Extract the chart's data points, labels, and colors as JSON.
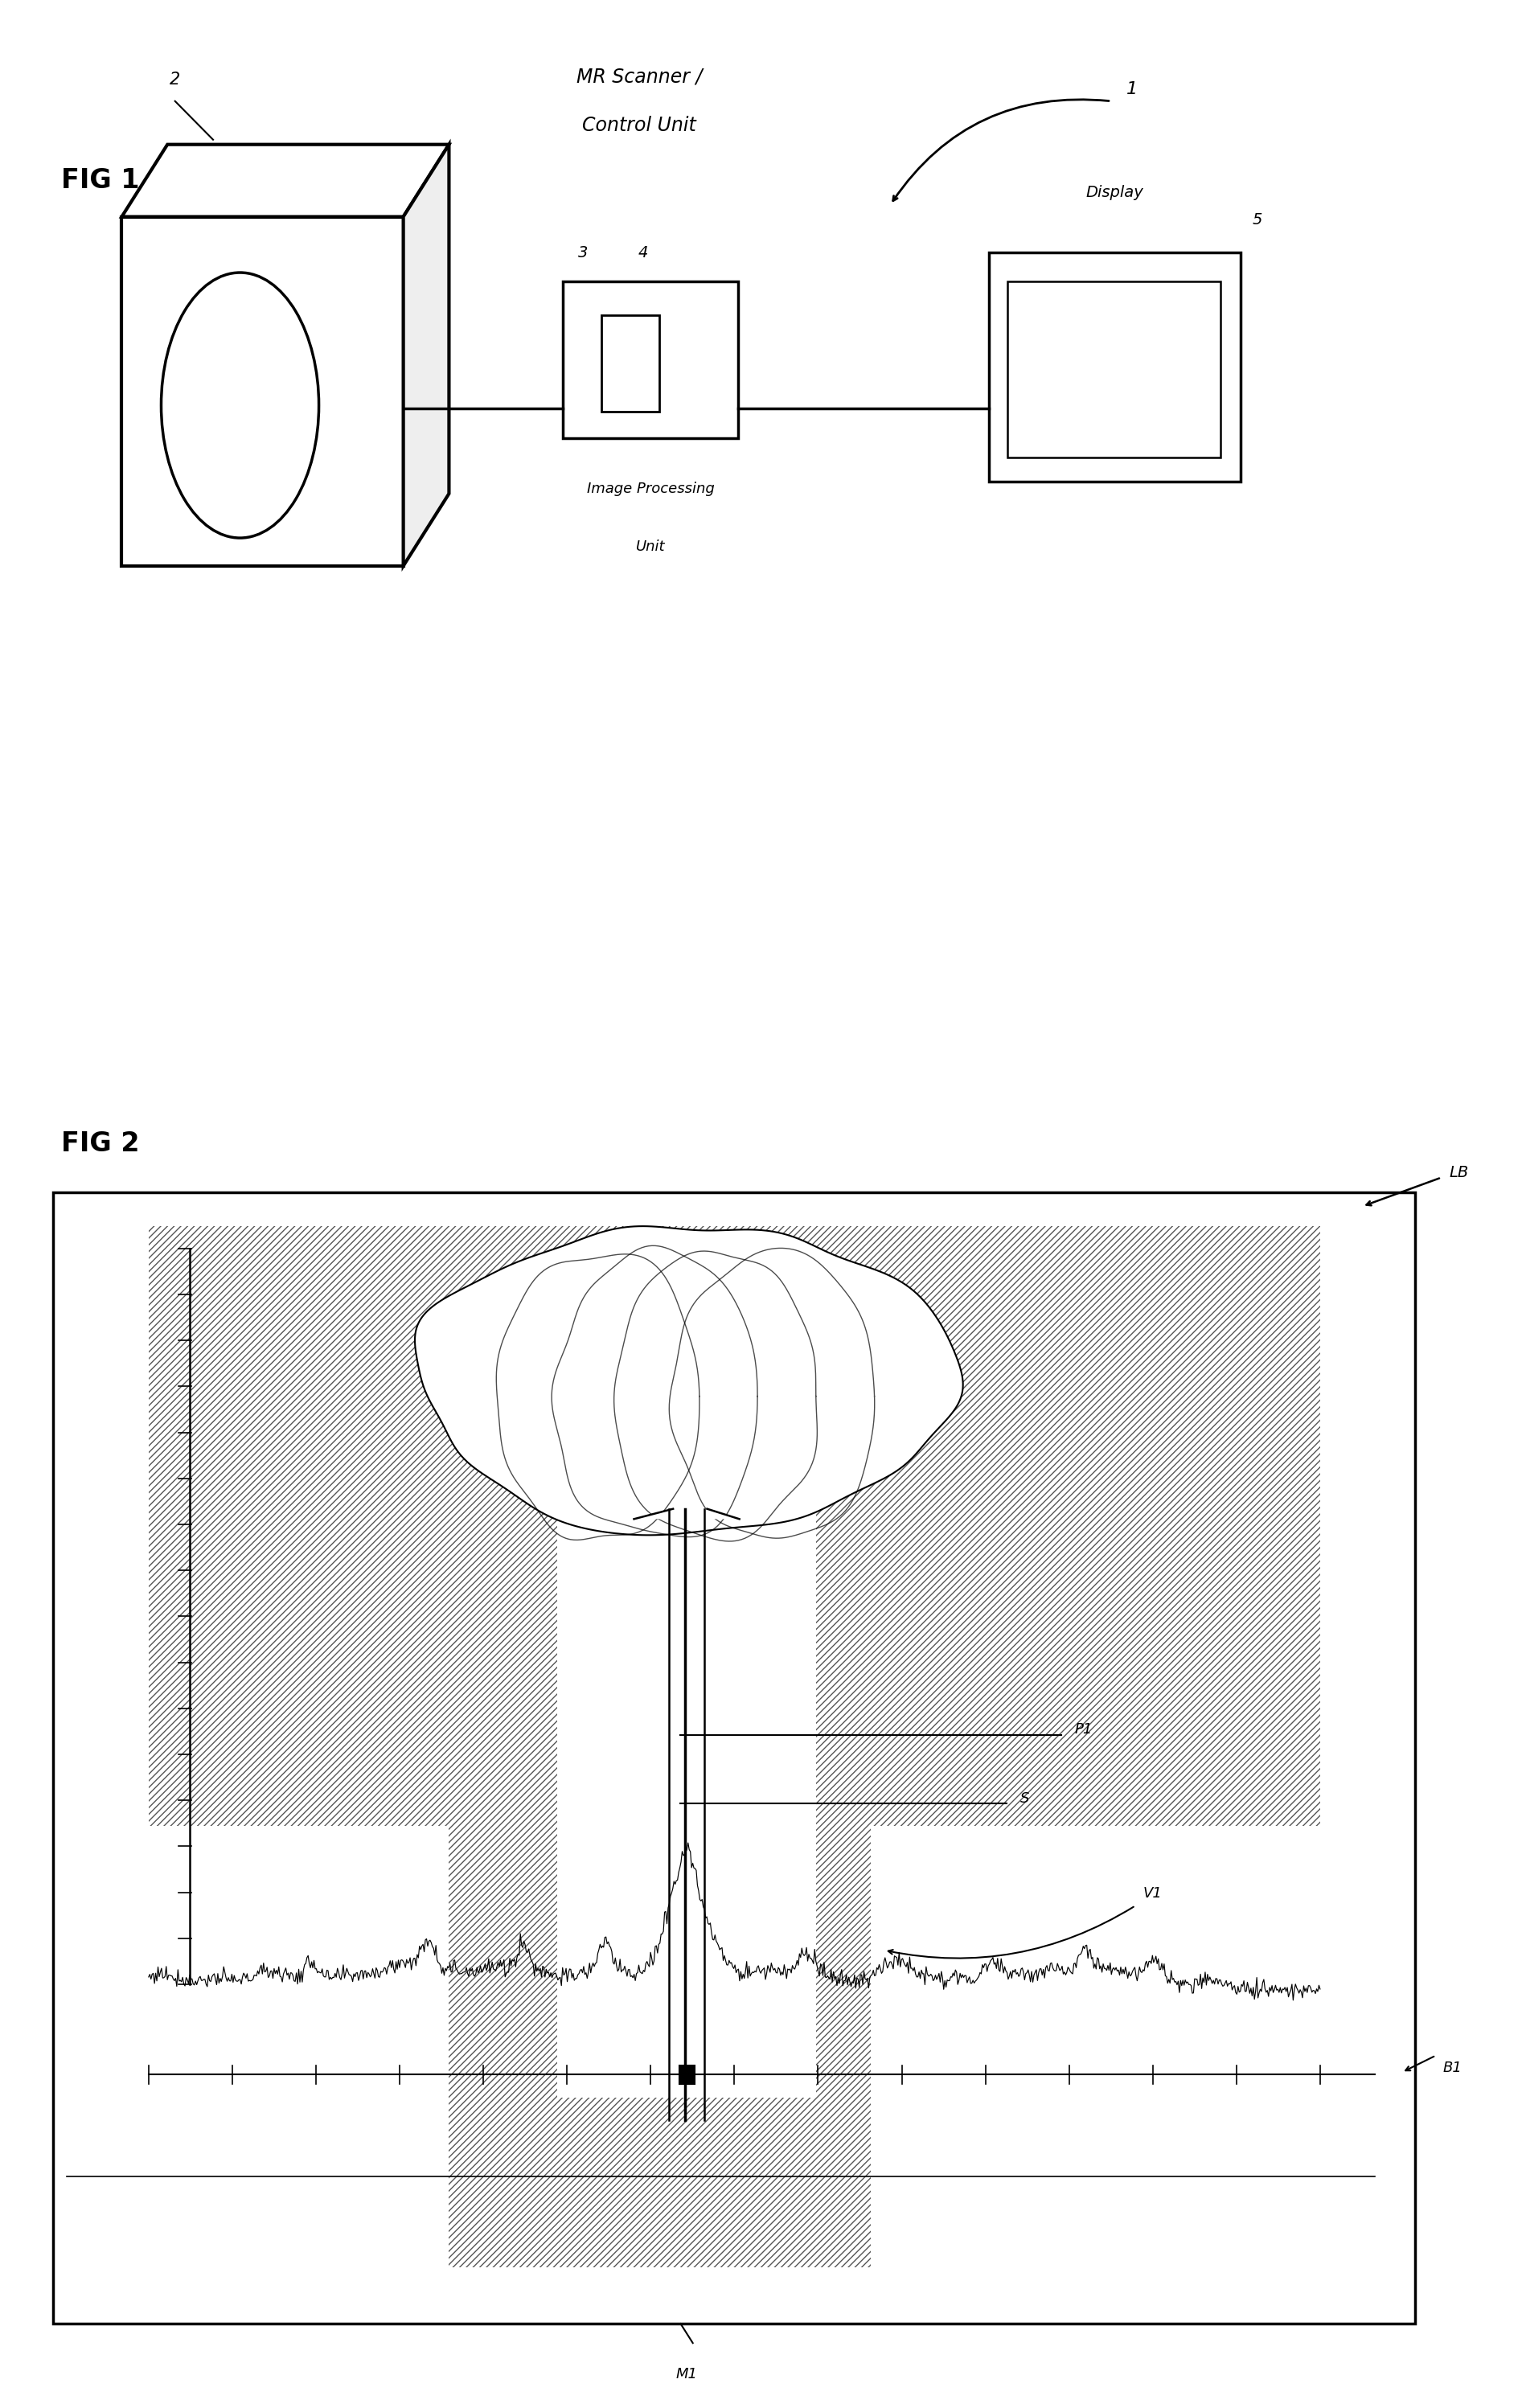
{
  "fig_width": 18.93,
  "fig_height": 29.95,
  "bg_color": "#ffffff",
  "fig1": {
    "label": "FIG 1",
    "title_line1": "MR Scanner /",
    "title_line2": "Control Unit",
    "label_1": "1",
    "label_2": "2",
    "label_3": "3",
    "label_4": "4",
    "label_5": "5",
    "display_text": "Display",
    "img_proc_line1": "Image Processing",
    "img_proc_line2": "Unit"
  },
  "fig2": {
    "label": "FIG 2",
    "lb_label": "LB",
    "p1_label": "P1",
    "s_label": "S",
    "v1_label": "V1",
    "b1_label": "B1",
    "m1_label": "M1"
  }
}
